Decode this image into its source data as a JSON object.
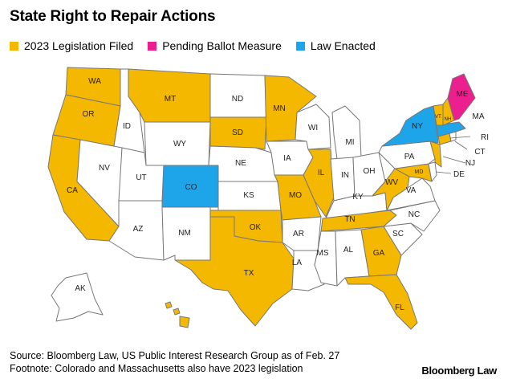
{
  "title": "State Right to Repair Actions",
  "legend": [
    {
      "label": "2023 Legislation Filed",
      "color": "#f5b800"
    },
    {
      "label": "Pending Ballot Measure",
      "color": "#ec1f8f"
    },
    {
      "label": "Law Enacted",
      "color": "#1ea5e9"
    }
  ],
  "colors": {
    "filed": "#f5b800",
    "ballot": "#ec1f8f",
    "enacted": "#1ea5e9",
    "none": "#ffffff"
  },
  "states": [
    {
      "abbr": "WA",
      "status": "filed"
    },
    {
      "abbr": "OR",
      "status": "filed"
    },
    {
      "abbr": "CA",
      "status": "filed"
    },
    {
      "abbr": "ID",
      "status": "none"
    },
    {
      "abbr": "NV",
      "status": "none"
    },
    {
      "abbr": "MT",
      "status": "filed"
    },
    {
      "abbr": "WY",
      "status": "none"
    },
    {
      "abbr": "UT",
      "status": "none"
    },
    {
      "abbr": "AZ",
      "status": "none"
    },
    {
      "abbr": "CO",
      "status": "enacted"
    },
    {
      "abbr": "NM",
      "status": "none"
    },
    {
      "abbr": "ND",
      "status": "none"
    },
    {
      "abbr": "SD",
      "status": "filed"
    },
    {
      "abbr": "NE",
      "status": "none"
    },
    {
      "abbr": "KS",
      "status": "none"
    },
    {
      "abbr": "OK",
      "status": "filed"
    },
    {
      "abbr": "TX",
      "status": "filed"
    },
    {
      "abbr": "MN",
      "status": "filed"
    },
    {
      "abbr": "IA",
      "status": "none"
    },
    {
      "abbr": "MO",
      "status": "filed"
    },
    {
      "abbr": "AR",
      "status": "none"
    },
    {
      "abbr": "LA",
      "status": "none"
    },
    {
      "abbr": "WI",
      "status": "none"
    },
    {
      "abbr": "IL",
      "status": "filed"
    },
    {
      "abbr": "MI",
      "status": "none"
    },
    {
      "abbr": "IN",
      "status": "none"
    },
    {
      "abbr": "OH",
      "status": "none"
    },
    {
      "abbr": "KY",
      "status": "none"
    },
    {
      "abbr": "TN",
      "status": "filed"
    },
    {
      "abbr": "MS",
      "status": "none"
    },
    {
      "abbr": "AL",
      "status": "none"
    },
    {
      "abbr": "GA",
      "status": "filed"
    },
    {
      "abbr": "FL",
      "status": "filed"
    },
    {
      "abbr": "SC",
      "status": "none"
    },
    {
      "abbr": "NC",
      "status": "none"
    },
    {
      "abbr": "VA",
      "status": "none"
    },
    {
      "abbr": "WV",
      "status": "filed"
    },
    {
      "abbr": "MD",
      "status": "filed"
    },
    {
      "abbr": "DE",
      "status": "none"
    },
    {
      "abbr": "NJ",
      "status": "filed"
    },
    {
      "abbr": "PA",
      "status": "none"
    },
    {
      "abbr": "NY",
      "status": "enacted"
    },
    {
      "abbr": "CT",
      "status": "filed"
    },
    {
      "abbr": "RI",
      "status": "none"
    },
    {
      "abbr": "MA",
      "status": "enacted"
    },
    {
      "abbr": "VT",
      "status": "filed"
    },
    {
      "abbr": "NH",
      "status": "filed"
    },
    {
      "abbr": "ME",
      "status": "ballot"
    },
    {
      "abbr": "AK",
      "status": "none"
    },
    {
      "abbr": "HI",
      "status": "filed"
    }
  ],
  "footer": {
    "source": "Source: Bloomberg Law, US Public Interest Research Group as of Feb. 27",
    "footnote": "Footnote: Colorado and Massachusetts also have 2023 legislation"
  },
  "brand": "Bloomberg Law"
}
